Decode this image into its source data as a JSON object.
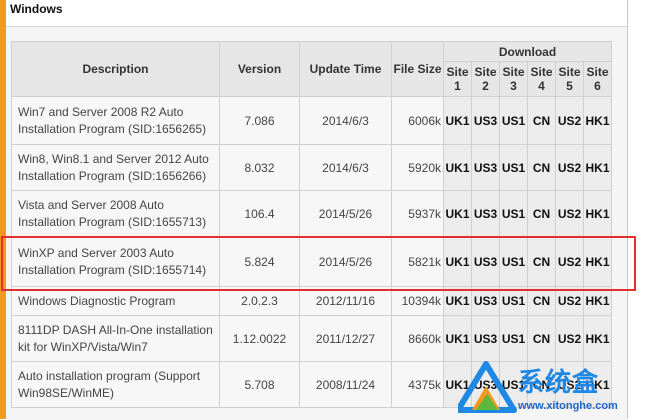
{
  "section_title": "Windows",
  "headers": {
    "description": "Description",
    "version": "Version",
    "update_time": "Update Time",
    "file_size": "File Size",
    "download": "Download",
    "sites": [
      "Site 1",
      "Site 2",
      "Site 3",
      "Site 4",
      "Site 5",
      "Site 6"
    ]
  },
  "rows": [
    {
      "description": "Win7 and Server 2008 R2 Auto Installation Program (SID:1656265)",
      "version": "7.086",
      "update_time": "2014/6/3",
      "file_size": "6006k",
      "sites": [
        "UK1",
        "US3",
        "US1",
        "CN",
        "US2",
        "HK1"
      ]
    },
    {
      "description": "Win8, Win8.1 and Server 2012 Auto Installation Program (SID:1656266)",
      "version": "8.032",
      "update_time": "2014/6/3",
      "file_size": "5920k",
      "sites": [
        "UK1",
        "US3",
        "US1",
        "CN",
        "US2",
        "HK1"
      ]
    },
    {
      "description": "Vista and Server 2008 Auto Installation Program (SID:1655713)",
      "version": "106.4",
      "update_time": "2014/5/26",
      "file_size": "5937k",
      "sites": [
        "UK1",
        "US3",
        "US1",
        "CN",
        "US2",
        "HK1"
      ]
    },
    {
      "description": "WinXP and Server 2003 Auto Installation Program (SID:1655714)",
      "version": "5.824",
      "update_time": "2014/5/26",
      "file_size": "5821k",
      "sites": [
        "UK1",
        "US3",
        "US1",
        "CN",
        "US2",
        "HK1"
      ]
    },
    {
      "description": "Windows Diagnostic Program",
      "version": "2.0.2.3",
      "update_time": "2012/11/16",
      "file_size": "10394k",
      "sites": [
        "UK1",
        "US3",
        "US1",
        "CN",
        "US2",
        "HK1"
      ]
    },
    {
      "description": "8111DP DASH All-In-One installation kit for WinXP/Vista/Win7",
      "version": "1.12.0022",
      "update_time": "2011/12/27",
      "file_size": "8660k",
      "sites": [
        "UK1",
        "US3",
        "US1",
        "CN",
        "US2",
        "HK1"
      ]
    },
    {
      "description": "Auto installation program (Support Win98SE/WinME)",
      "version": "5.708",
      "update_time": "2008/11/24",
      "file_size": "4375k",
      "sites": [
        "UK1",
        "US3",
        "US1",
        "CN",
        "US2",
        "HK1"
      ]
    }
  ],
  "watermark": {
    "text": "系统盒",
    "url": "www.xitonghe.com",
    "icon": "xitonghe-logo-icon",
    "color": "#1e88e5"
  }
}
